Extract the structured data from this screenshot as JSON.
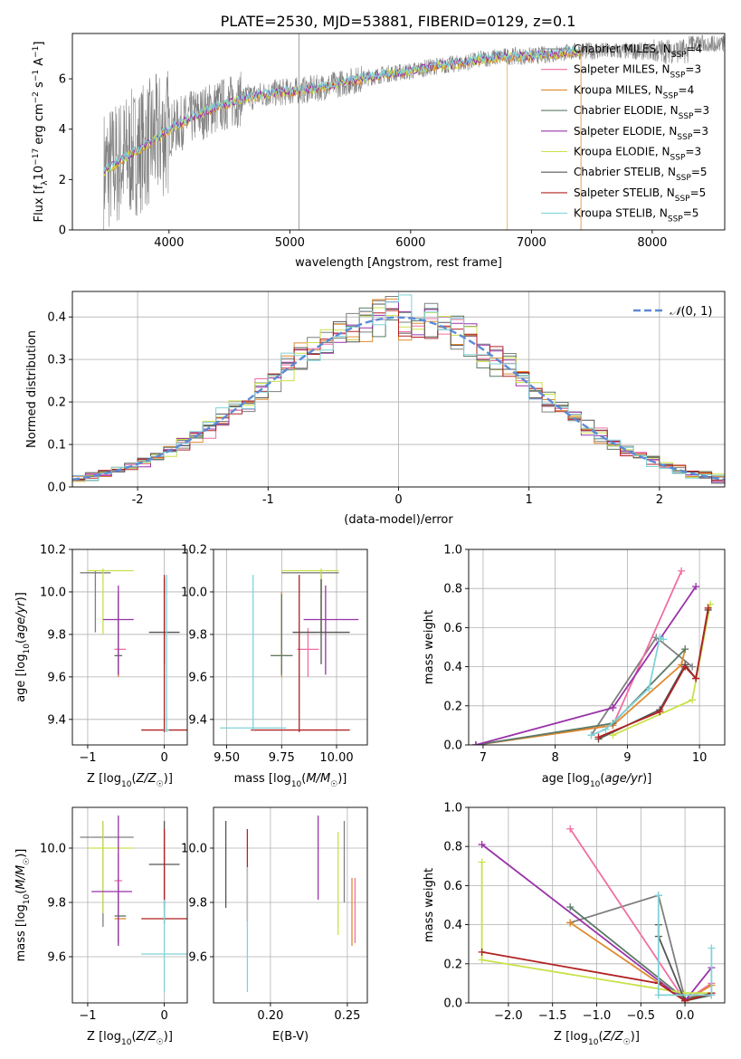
{
  "figure": {
    "title": "PLATE=2530, MJD=53881, FIBERID=0129, z=0.1"
  },
  "series_styles": [
    {
      "name": "Chabrier MILES",
      "color": "#7f7f7f"
    },
    {
      "name": "Salpeter MILES",
      "color": "#f06fa3"
    },
    {
      "name": "Kroupa MILES",
      "color": "#e08a2e"
    },
    {
      "name": "Chabrier ELODIE",
      "color": "#5b7a66"
    },
    {
      "name": "Salpeter ELODIE",
      "color": "#9932a8"
    },
    {
      "name": "Kroupa ELODIE",
      "color": "#c9e14a"
    },
    {
      "name": "Chabrier STELIB",
      "color": "#555555"
    },
    {
      "name": "Salpeter STELIB",
      "color": "#b22222"
    },
    {
      "name": "Kroupa STELIB",
      "color": "#7fd3d8"
    }
  ],
  "chart_data": [
    {
      "id": "spectrum",
      "type": "line",
      "title": "PLATE=2530, MJD=53881, FIBERID=0129, z=0.1",
      "xlabel": "wavelength [Angstrom, rest frame]",
      "ylabel": "Flux [f_λ 10^-17 erg cm^-2 s^-1 A^-1]",
      "xlim": [
        3200,
        8600
      ],
      "ylim": [
        0,
        7.8
      ],
      "xticks": [
        4000,
        5000,
        6000,
        7000,
        8000
      ],
      "yticks": [
        0,
        2,
        4,
        6
      ],
      "grid": false,
      "legend_position": "top-right",
      "legend": [
        "Chabrier MILES, N_SSP=4",
        "Salpeter MILES, N_SSP=3",
        "Kroupa MILES, N_SSP=4",
        "Chabrier ELODIE, N_SSP=3",
        "Salpeter ELODIE, N_SSP=3",
        "Kroupa ELODIE, N_SSP=3",
        "Chabrier STELIB, N_SSP=5",
        "Salpeter STELIB, N_SSP=5",
        "Kroupa STELIB, N_SSP=5"
      ],
      "model_curve": {
        "x": [
          3460,
          3550,
          3650,
          3750,
          3850,
          3950,
          4050,
          4200,
          4400,
          4600,
          4800,
          5000,
          5200,
          5400,
          5600,
          5800,
          6000,
          6200,
          6400,
          6600,
          6800,
          7000,
          7200,
          7400
        ],
        "y": [
          2.3,
          2.6,
          2.9,
          3.2,
          3.5,
          3.8,
          4.1,
          4.5,
          4.9,
          5.2,
          5.4,
          5.5,
          5.6,
          5.8,
          6.0,
          6.2,
          6.3,
          6.5,
          6.6,
          6.8,
          6.9,
          6.9,
          7.0,
          7.1
        ]
      }
    },
    {
      "id": "residuals",
      "type": "line",
      "xlabel": "(data-model)/error",
      "ylabel": "Normed distribution",
      "xlim": [
        -2.5,
        2.5
      ],
      "ylim": [
        0,
        0.46
      ],
      "xticks": [
        -2,
        -1,
        0,
        1,
        2
      ],
      "yticks": [
        0.0,
        0.1,
        0.2,
        0.3,
        0.4
      ],
      "grid": true,
      "legend_position": "top-right",
      "legend": [
        "𝒩(0,1)"
      ],
      "reference": {
        "name": "𝒩(0,1)",
        "color": "#5b8ad6",
        "mean": 0,
        "sigma": 1
      },
      "bin_width": 0.1
    },
    {
      "id": "age-vs-Z",
      "type": "scatter",
      "xlabel": "Z [log10(Z/Z☉)]",
      "ylabel": "age [log10(age/yr)]",
      "xlim": [
        -1.2,
        0.3
      ],
      "ylim": [
        9.28,
        10.2
      ],
      "xticks": [
        -1,
        0
      ],
      "xticklabels": [
        "−1",
        "0"
      ],
      "yticks": [
        9.4,
        9.6,
        9.8,
        10.0,
        10.2
      ],
      "grid": true,
      "points": [
        {
          "x": -0.9,
          "y": 10.09,
          "xerr": [
            0.2,
            0.2
          ],
          "yerr": [
            0.28,
            0.01
          ],
          "series": 0
        },
        {
          "x": -0.8,
          "y": 10.1,
          "xerr": [
            0.2,
            0.4
          ],
          "yerr": [
            0.3,
            0.01
          ],
          "series": 5
        },
        {
          "x": -0.6,
          "y": 9.73,
          "xerr": [
            0.05,
            0.1
          ],
          "yerr": [
            0.13,
            0.1
          ],
          "series": 1
        },
        {
          "x": -0.6,
          "y": 9.7,
          "xerr": [
            0.05,
            0.05
          ],
          "yerr": [
            0.1,
            0.3
          ],
          "series": 2
        },
        {
          "x": -0.6,
          "y": 9.7,
          "xerr": [
            0.05,
            0.05
          ],
          "yerr": [
            0.09,
            0.29
          ],
          "series": 3
        },
        {
          "x": -0.6,
          "y": 9.87,
          "xerr": [
            0.2,
            0.2
          ],
          "yerr": [
            0.26,
            0.16
          ],
          "series": 4
        },
        {
          "x": 0.0,
          "y": 9.81,
          "xerr": [
            0.2,
            0.2
          ],
          "yerr": [
            0.15,
            0.25
          ],
          "series": 6
        },
        {
          "x": 0.0,
          "y": 9.35,
          "xerr": [
            0.3,
            0.3
          ],
          "yerr": [
            0.01,
            0.73
          ],
          "series": 7
        },
        {
          "x": 0.03,
          "y": 9.35,
          "xerr": [
            0.03,
            0.03
          ],
          "yerr": [
            0.01,
            0.73
          ],
          "series": 8
        }
      ]
    },
    {
      "id": "age-vs-mass",
      "type": "scatter",
      "xlabel": "mass [log10(M/M☉)]",
      "ylabel": "",
      "xlim": [
        9.44,
        10.14
      ],
      "ylim": [
        9.28,
        10.2
      ],
      "xticks": [
        9.5,
        9.75,
        10.0
      ],
      "xticklabels": [
        "9.50",
        "9.75",
        "10.00"
      ],
      "yticks": [
        9.4,
        9.6,
        9.8,
        10.0,
        10.2
      ],
      "grid": true,
      "points": [
        {
          "x": 9.93,
          "y": 10.09,
          "xerr": [
            0.18,
            0.08
          ],
          "yerr": [
            0.28,
            0.01
          ],
          "series": 0
        },
        {
          "x": 9.93,
          "y": 10.1,
          "xerr": [
            0.18,
            0.08
          ],
          "yerr": [
            0.3,
            0.01
          ],
          "series": 5
        },
        {
          "x": 9.87,
          "y": 9.73,
          "xerr": [
            0.05,
            0.05
          ],
          "yerr": [
            0.13,
            0.1
          ],
          "series": 1
        },
        {
          "x": 9.75,
          "y": 9.7,
          "xerr": [
            0.05,
            0.05
          ],
          "yerr": [
            0.1,
            0.3
          ],
          "series": 2
        },
        {
          "x": 9.75,
          "y": 9.7,
          "xerr": [
            0.05,
            0.05
          ],
          "yerr": [
            0.09,
            0.29
          ],
          "series": 3
        },
        {
          "x": 9.95,
          "y": 9.87,
          "xerr": [
            0.1,
            0.15
          ],
          "yerr": [
            0.26,
            0.16
          ],
          "series": 4
        },
        {
          "x": 9.93,
          "y": 9.81,
          "xerr": [
            0.13,
            0.13
          ],
          "yerr": [
            0.15,
            0.25
          ],
          "series": 6
        },
        {
          "x": 9.83,
          "y": 9.35,
          "xerr": [
            0.22,
            0.23
          ],
          "yerr": [
            0.01,
            0.73
          ],
          "series": 7
        },
        {
          "x": 9.62,
          "y": 9.36,
          "xerr": [
            0.15,
            0.15
          ],
          "yerr": [
            0.01,
            0.72
          ],
          "series": 8
        }
      ]
    },
    {
      "id": "mass-weight-vs-age",
      "type": "line",
      "xlabel": "age [log10(age/yr)]",
      "ylabel": "mass weight",
      "xlim": [
        6.8,
        10.35
      ],
      "ylim": [
        0,
        1.0
      ],
      "xticks": [
        7,
        8,
        9,
        10
      ],
      "yticks": [
        0.0,
        0.2,
        0.4,
        0.6,
        0.8,
        1.0
      ],
      "grid": true,
      "series": [
        {
          "name": "Chabrier MILES",
          "x": [
            8.5,
            9.4,
            9.9
          ],
          "y": [
            0.05,
            0.55,
            0.4
          ]
        },
        {
          "name": "Salpeter MILES",
          "x": [
            6.9,
            8.8,
            9.75
          ],
          "y": [
            0.0,
            0.1,
            0.89
          ]
        },
        {
          "name": "Kroupa MILES",
          "x": [
            6.9,
            8.8,
            9.75,
            9.8
          ],
          "y": [
            0.0,
            0.1,
            0.41,
            0.49
          ]
        },
        {
          "name": "Chabrier ELODIE",
          "x": [
            6.9,
            8.8,
            9.8
          ],
          "y": [
            0.0,
            0.11,
            0.49
          ]
        },
        {
          "name": "Salpeter ELODIE",
          "x": [
            6.9,
            8.8,
            9.95
          ],
          "y": [
            0.0,
            0.19,
            0.81
          ]
        },
        {
          "name": "Kroupa ELODIE",
          "x": [
            8.8,
            9.9,
            10.15
          ],
          "y": [
            0.05,
            0.23,
            0.72
          ]
        },
        {
          "name": "Chabrier STELIB",
          "x": [
            8.6,
            9.45,
            9.8,
            9.95,
            10.12
          ],
          "y": [
            0.03,
            0.18,
            0.41,
            0.34,
            0.69
          ]
        },
        {
          "name": "Salpeter STELIB",
          "x": [
            8.6,
            9.45,
            9.8,
            9.95,
            10.12
          ],
          "y": [
            0.04,
            0.17,
            0.4,
            0.34,
            0.7
          ]
        },
        {
          "name": "Kroupa STELIB",
          "x": [
            8.5,
            8.7,
            9.3,
            9.45,
            9.5
          ],
          "y": [
            0.05,
            0.08,
            0.29,
            0.55,
            0.54
          ]
        }
      ]
    },
    {
      "id": "mass-vs-Z",
      "type": "scatter",
      "xlabel": "Z [log10(Z/Z☉)]",
      "ylabel": "mass [log10(M/M☉)]",
      "xlim": [
        -1.2,
        0.3
      ],
      "ylim": [
        9.43,
        10.15
      ],
      "xticks": [
        -1,
        0
      ],
      "xticklabels": [
        "−1",
        "0"
      ],
      "yticks": [
        9.6,
        9.8,
        10.0
      ],
      "grid": true,
      "points": [
        {
          "x": -0.8,
          "y": 10.04,
          "xerr": [
            0.3,
            0.4
          ],
          "yerr": [
            0.33,
            0.06
          ],
          "series": 0
        },
        {
          "x": -0.8,
          "y": 10.0,
          "xerr": [
            0.2,
            0.4
          ],
          "yerr": [
            0.24,
            0.1
          ],
          "series": 5
        },
        {
          "x": -0.6,
          "y": 9.88,
          "xerr": [
            0.05,
            0.05
          ],
          "yerr": [
            0.2,
            0.1
          ],
          "series": 1
        },
        {
          "x": -0.6,
          "y": 9.74,
          "xerr": [
            0.05,
            0.1
          ],
          "yerr": [
            0.09,
            0.1
          ],
          "series": 2
        },
        {
          "x": -0.6,
          "y": 9.75,
          "xerr": [
            0.05,
            0.1
          ],
          "yerr": [
            0.1,
            0.12
          ],
          "series": 3
        },
        {
          "x": -0.6,
          "y": 9.84,
          "xerr": [
            0.35,
            0.18
          ],
          "yerr": [
            0.2,
            0.28
          ],
          "series": 4
        },
        {
          "x": 0.0,
          "y": 9.94,
          "xerr": [
            0.2,
            0.2
          ],
          "yerr": [
            0.16,
            0.16
          ],
          "series": 6
        },
        {
          "x": 0.0,
          "y": 9.74,
          "xerr": [
            0.3,
            0.3
          ],
          "yerr": [
            0.02,
            0.33
          ],
          "series": 7
        },
        {
          "x": 0.0,
          "y": 9.61,
          "xerr": [
            0.3,
            0.3
          ],
          "yerr": [
            0.14,
            0.2
          ],
          "series": 8
        }
      ]
    },
    {
      "id": "mass-vs-EBV",
      "type": "scatter",
      "xlabel": "E(B-V)",
      "ylabel": "",
      "xlim": [
        0.163,
        0.263
      ],
      "ylim": [
        9.43,
        10.15
      ],
      "xticks": [
        0.2,
        0.25
      ],
      "xticklabels": [
        "0.20",
        "0.25"
      ],
      "yticks": [
        9.6,
        9.8,
        10.0
      ],
      "grid": true,
      "points": [
        {
          "x": 0.171,
          "y": 9.94,
          "yerr": [
            0.16,
            0.16
          ],
          "series": 6
        },
        {
          "x": 0.185,
          "y": 9.93,
          "yerr": [
            0.2,
            0.14
          ],
          "series": 7
        },
        {
          "x": 0.185,
          "y": 9.7,
          "yerr": [
            0.23,
            0.23
          ],
          "series": 8
        },
        {
          "x": 0.231,
          "y": 9.96,
          "yerr": [
            0.15,
            0.16
          ],
          "series": 4
        },
        {
          "x": 0.244,
          "y": 9.88,
          "yerr": [
            0.2,
            0.18
          ],
          "series": 5
        },
        {
          "x": 0.248,
          "y": 9.95,
          "yerr": [
            0.15,
            0.15
          ],
          "series": 0
        },
        {
          "x": 0.253,
          "y": 9.79,
          "yerr": [
            0.15,
            0.1
          ],
          "series": 2
        },
        {
          "x": 0.255,
          "y": 9.8,
          "yerr": [
            0.15,
            0.09
          ],
          "series": 1
        }
      ]
    },
    {
      "id": "mass-weight-vs-Z",
      "type": "line",
      "xlabel": "Z [log10(Z/Z☉)]",
      "ylabel": "mass weight",
      "xlim": [
        -2.45,
        0.45
      ],
      "ylim": [
        0,
        1.0
      ],
      "xticks": [
        -2.0,
        -1.5,
        -1.0,
        -0.5,
        0.0
      ],
      "xticklabels": [
        "−2.0",
        "−1.5",
        "−1.0",
        "−0.5",
        "0.0"
      ],
      "yticks": [
        0.0,
        0.2,
        0.4,
        0.6,
        0.8,
        1.0
      ],
      "grid": true,
      "series": [
        {
          "name": "Chabrier MILES",
          "x": [
            -1.3,
            -0.3,
            0.0
          ],
          "y": [
            0.41,
            0.55,
            0.02
          ]
        },
        {
          "name": "Salpeter MILES",
          "x": [
            -1.3,
            0.0,
            0.3
          ],
          "y": [
            0.89,
            0.01,
            0.1
          ]
        },
        {
          "name": "Kroupa MILES",
          "x": [
            -1.3,
            0.0,
            0.3
          ],
          "y": [
            0.41,
            0.01,
            0.09
          ]
        },
        {
          "name": "Chabrier ELODIE",
          "x": [
            -1.3,
            0.0,
            0.3
          ],
          "y": [
            0.49,
            0.02,
            0.05
          ]
        },
        {
          "name": "Salpeter ELODIE",
          "x": [
            -2.3,
            0.0,
            0.3
          ],
          "y": [
            0.81,
            0.01,
            0.18
          ]
        },
        {
          "name": "Kroupa ELODIE",
          "x": [
            -2.3,
            -2.3,
            0.0,
            0.3
          ],
          "y": [
            0.72,
            0.22,
            0.05,
            0.05
          ]
        },
        {
          "name": "Chabrier STELIB",
          "x": [
            -0.3,
            -0.3,
            0.0,
            0.3
          ],
          "y": [
            0.4,
            0.34,
            0.01,
            0.04
          ]
        },
        {
          "name": "Salpeter STELIB",
          "x": [
            -2.3,
            -0.3,
            0.0,
            0.3
          ],
          "y": [
            0.26,
            0.1,
            0.01,
            0.05
          ]
        },
        {
          "name": "Kroupa STELIB",
          "x": [
            -0.3,
            -0.3,
            0.3,
            0.3
          ],
          "y": [
            0.55,
            0.04,
            0.04,
            0.28
          ]
        }
      ]
    }
  ]
}
